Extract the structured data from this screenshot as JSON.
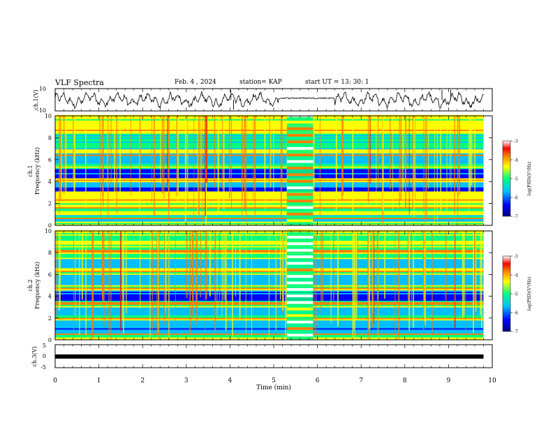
{
  "header": {
    "title": "VLF Spectra",
    "date": "Feb. 4 , 2024",
    "station": "station= KAP",
    "start": "start UT =  13: 30: 1"
  },
  "chart_data": [
    {
      "id": "ch1-waveform",
      "type": "line",
      "ylabel": "ch.1(V)",
      "ylim": [
        -10,
        10
      ],
      "yticks": [
        "10",
        "-10"
      ],
      "xlim": [
        0,
        10
      ],
      "description_data": "noisy waveform oscillating between about -8 and +8 V, flattening to near 0 V from 5.3 to 5.8 min",
      "quiet_interval_min": [
        5.3,
        5.8
      ]
    },
    {
      "id": "ch1-spectrogram",
      "type": "heatmap",
      "ylabel_top": "ch.1",
      "ylabel": "Frequency (kHz)",
      "ylim": [
        0,
        10
      ],
      "yticks": [
        "0",
        "2",
        "4",
        "6",
        "8",
        "10"
      ],
      "xlim": [
        0,
        10
      ],
      "burst_interval_min": [
        5.3,
        5.9
      ],
      "colorbar": {
        "label": "log(PSD)(V²/Hz)",
        "range": [
          -7,
          -3
        ],
        "ticks": [
          "-3",
          "-4",
          "-5",
          "-6",
          "-7"
        ]
      }
    },
    {
      "id": "ch2-spectrogram",
      "type": "heatmap",
      "ylabel_top": "ch.2",
      "ylabel": "Frequency (kHz)",
      "ylim": [
        0,
        10
      ],
      "yticks": [
        "0",
        "2",
        "4",
        "6",
        "8",
        "10"
      ],
      "xlim": [
        0,
        10
      ],
      "burst_interval_min": [
        5.3,
        5.9
      ],
      "colorbar": {
        "label": "log(PSD)(V²/Hz)",
        "range": [
          -7,
          -3
        ],
        "ticks": [
          "-3",
          "-4",
          "-5",
          "-6",
          "-7"
        ]
      }
    },
    {
      "id": "ch3-waveform",
      "type": "line",
      "ylabel": "ch.3(V)",
      "ylim": [
        -5,
        5
      ],
      "yticks": [
        "5",
        "0",
        "-5"
      ],
      "xlim": [
        0,
        10
      ],
      "constant_value_V": -0.5
    }
  ],
  "xaxis": {
    "label": "Time (min)",
    "ticks": [
      "0",
      "1",
      "2",
      "3",
      "4",
      "5",
      "6",
      "7",
      "8",
      "9",
      "10"
    ]
  },
  "colors": {
    "psd_scale": [
      "#00007f",
      "#0000ff",
      "#00bfff",
      "#00ff80",
      "#ffff00",
      "#ff7f00",
      "#ff0000",
      "#ffffff"
    ]
  }
}
